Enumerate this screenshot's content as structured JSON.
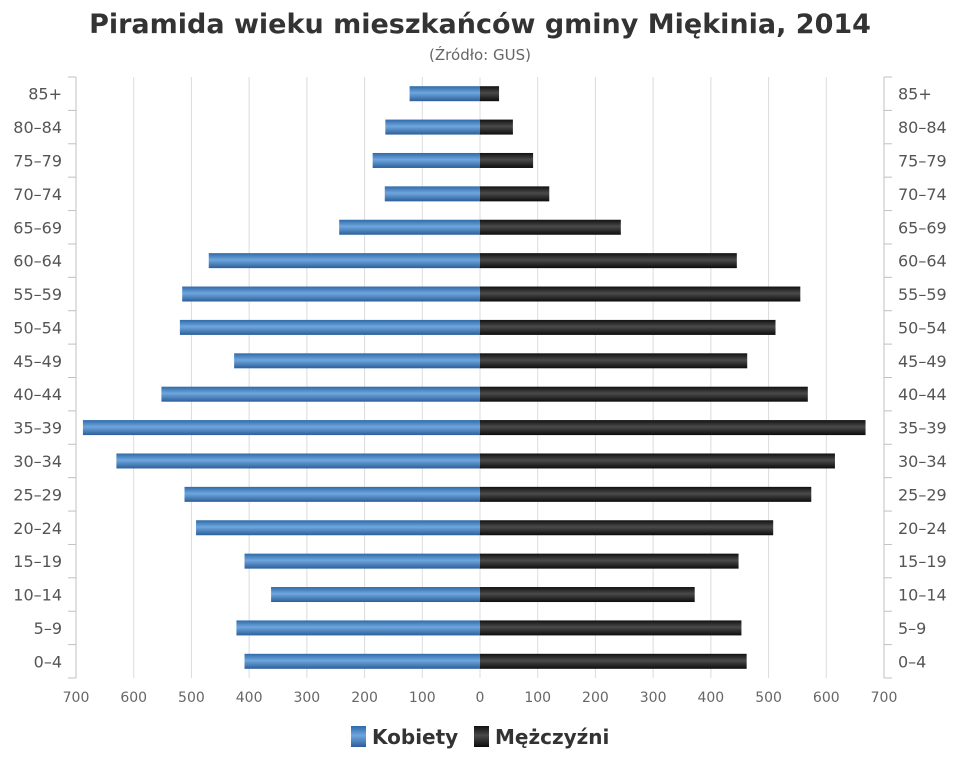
{
  "chart_data": {
    "type": "bar",
    "orientation": "horizontal-pyramid",
    "title": "Piramida wieku mieszkańców gminy Miękinia, 2014",
    "subtitle": "(Źródło: GUS)",
    "categories": [
      "85+",
      "80–84",
      "75–79",
      "70–74",
      "65–69",
      "60–64",
      "55–59",
      "50–54",
      "45–49",
      "40–44",
      "35–39",
      "30–34",
      "25–29",
      "20–24",
      "15–19",
      "10–14",
      "5–9",
      "0–4"
    ],
    "series": [
      {
        "name": "Kobiety",
        "color": "#4a86c5",
        "direction": "left",
        "values": [
          122,
          164,
          186,
          165,
          244,
          470,
          516,
          520,
          426,
          552,
          688,
          630,
          512,
          492,
          408,
          362,
          422,
          408
        ]
      },
      {
        "name": "Mężczyźni",
        "color": "#222222",
        "direction": "right",
        "values": [
          33,
          57,
          92,
          120,
          244,
          445,
          555,
          512,
          463,
          568,
          668,
          615,
          574,
          508,
          448,
          372,
          453,
          462
        ]
      }
    ],
    "x_ticks": [
      "700",
      "600",
      "500",
      "400",
      "300",
      "200",
      "100",
      "0",
      "100",
      "200",
      "300",
      "400",
      "500",
      "600",
      "700"
    ],
    "xlim": [
      -700,
      700
    ],
    "grid": true,
    "legend_position": "bottom-center"
  }
}
